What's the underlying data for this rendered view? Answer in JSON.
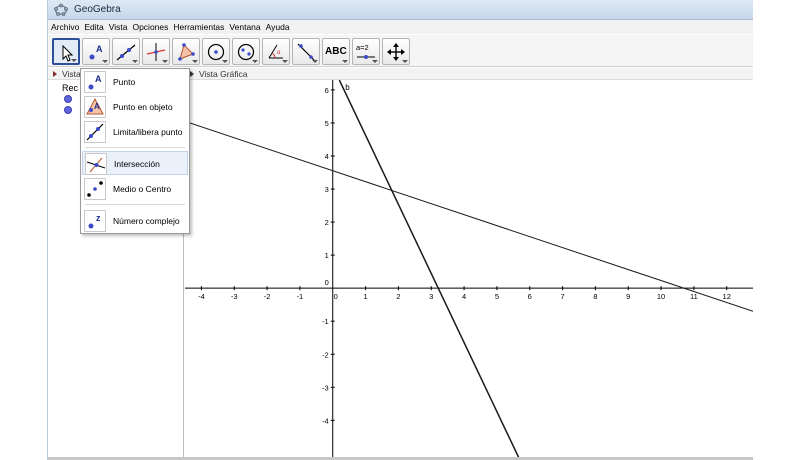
{
  "window": {
    "title": "GeoGebra"
  },
  "menu": [
    "Archivo",
    "Edita",
    "Vista",
    "Opciones",
    "Herramientas",
    "Ventana",
    "Ayuda"
  ],
  "toolbar": {
    "tools": [
      {
        "name": "move-tool",
        "icon": "arrow-icon",
        "selected": true
      },
      {
        "name": "point-tool",
        "icon": "point-icon"
      },
      {
        "name": "line-tool",
        "icon": "line-icon"
      },
      {
        "name": "perpendicular-tool",
        "icon": "perpendicular-icon"
      },
      {
        "name": "polygon-tool",
        "icon": "polygon-icon"
      },
      {
        "name": "circle-tool",
        "icon": "circle-icon"
      },
      {
        "name": "ellipse-tool",
        "icon": "ellipse-icon"
      },
      {
        "name": "angle-tool",
        "icon": "angle-icon"
      },
      {
        "name": "reflect-tool",
        "icon": "reflect-icon"
      },
      {
        "name": "text-tool",
        "label": "ABC"
      },
      {
        "name": "slider-tool",
        "label": "a=2"
      },
      {
        "name": "move-view-tool",
        "icon": "move-view-icon"
      }
    ]
  },
  "algebra": {
    "header": "Vista",
    "tree_label": "Rec"
  },
  "graphics": {
    "header": "Vista Gráfica",
    "line_label": "b"
  },
  "dropdown": {
    "items": [
      {
        "label": "Punto"
      },
      {
        "label": "Punto en objeto"
      },
      {
        "label": "Limita/libera punto"
      },
      {
        "label": "Intersección"
      },
      {
        "label": "Medio o Centro"
      },
      {
        "label": "Número complejo"
      }
    ]
  },
  "axes": {
    "x_ticks": [
      "-4",
      "-3",
      "-2",
      "-1",
      "0",
      "1",
      "2",
      "3",
      "4",
      "5",
      "6",
      "7",
      "8",
      "9",
      "10",
      "11",
      "12"
    ],
    "y_ticks": [
      "6",
      "5",
      "4",
      "3",
      "2",
      "1",
      "0",
      "-1",
      "-2",
      "-3",
      "-4"
    ],
    "xlim": [
      -4.5,
      12.8
    ],
    "ylim": [
      -5.2,
      6.3
    ]
  },
  "lines": [
    {
      "name": "line-a",
      "from": [
        -4.5,
        5.05
      ],
      "to": [
        12.8,
        -0.7
      ]
    },
    {
      "name": "line-b",
      "from": [
        0.2,
        6.3
      ],
      "to": [
        5.7,
        -5.2
      ]
    }
  ]
}
